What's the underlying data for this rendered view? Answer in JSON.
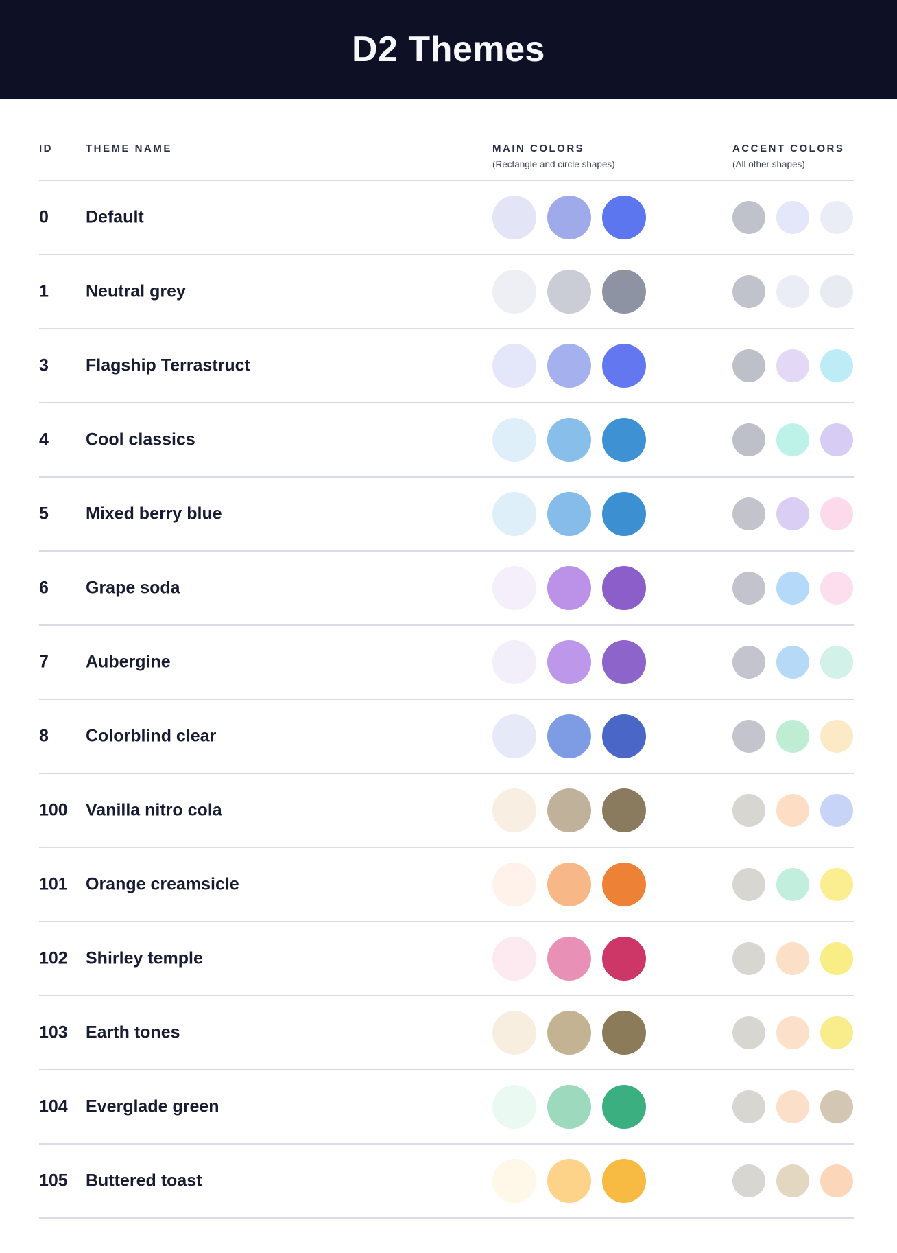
{
  "header": {
    "title": "D2 Themes",
    "bg_color": "#0E1126",
    "text_color": "#F7F8FC"
  },
  "table": {
    "divider_color": "#D9DCE6",
    "columns": {
      "id": "ID",
      "theme_name": "THEME NAME",
      "main": "MAIN COLORS",
      "main_sub": "(Rectangle and circle shapes)",
      "accent": "ACCENT COLORS",
      "accent_sub": "(All other shapes)"
    },
    "rows": [
      {
        "id": "0",
        "name": "Default",
        "main": [
          "#E3E5F7",
          "#9EAAE9",
          "#5B76EE"
        ],
        "accent": [
          "#BFC1CB",
          "#E4E6FA",
          "#EAEDF5"
        ]
      },
      {
        "id": "1",
        "name": "Neutral grey",
        "main": [
          "#EDEFF4",
          "#CACDD5",
          "#8E93A4"
        ],
        "accent": [
          "#C0C2CC",
          "#EAEDF5",
          "#E9EBF3"
        ]
      },
      {
        "id": "3",
        "name": "Flagship Terrastruct",
        "main": [
          "#E4E7FA",
          "#A5B0EF",
          "#6277F0"
        ],
        "accent": [
          "#BDBFC9",
          "#E3D9F6",
          "#BDEBF6"
        ]
      },
      {
        "id": "4",
        "name": "Cool classics",
        "main": [
          "#DEEFFA",
          "#87BEEA",
          "#3E92D4"
        ],
        "accent": [
          "#BDBFC9",
          "#BDF2E9",
          "#D6CCF4"
        ]
      },
      {
        "id": "5",
        "name": "Mixed berry blue",
        "main": [
          "#DEEFFA",
          "#85BCE9",
          "#3C90D2"
        ],
        "accent": [
          "#C2C3CC",
          "#DACEF4",
          "#FCDAEC"
        ]
      },
      {
        "id": "6",
        "name": "Grape soda",
        "main": [
          "#F5EEFB",
          "#BC92E9",
          "#8B5EC9"
        ],
        "accent": [
          "#C2C3CC",
          "#B5D9F8",
          "#FCDEEF"
        ]
      },
      {
        "id": "7",
        "name": "Aubergine",
        "main": [
          "#F2EEFA",
          "#BC97EA",
          "#8D64C9"
        ],
        "accent": [
          "#C3C4CD",
          "#B6D9F7",
          "#D2F1E8"
        ]
      },
      {
        "id": "8",
        "name": "Colorblind clear",
        "main": [
          "#E6EAF8",
          "#7E9CE4",
          "#4A67C7"
        ],
        "accent": [
          "#C3C4CD",
          "#BEEDD4",
          "#FCEAC7"
        ]
      },
      {
        "id": "100",
        "name": "Vanilla nitro cola",
        "main": [
          "#F8EEE2",
          "#C0B29A",
          "#8B7B5E"
        ],
        "accent": [
          "#D8D6D0",
          "#FDDEC5",
          "#C7D4F7"
        ]
      },
      {
        "id": "101",
        "name": "Orange creamsicle",
        "main": [
          "#FEF2EB",
          "#F8B787",
          "#ED8136"
        ],
        "accent": [
          "#D8D6D0",
          "#C2EFDD",
          "#FBEE91"
        ]
      },
      {
        "id": "102",
        "name": "Shirley temple",
        "main": [
          "#FCEAF0",
          "#E990B6",
          "#CC3767"
        ],
        "accent": [
          "#D8D6D0",
          "#FCDFC7",
          "#F9ED86"
        ]
      },
      {
        "id": "103",
        "name": "Earth tones",
        "main": [
          "#F7EEE0",
          "#C3B392",
          "#8B7B59"
        ],
        "accent": [
          "#D8D6D0",
          "#FDE0C9",
          "#F9ED8B"
        ]
      },
      {
        "id": "104",
        "name": "Everglade green",
        "main": [
          "#EAFAF2",
          "#9CD9BD",
          "#3CAF80"
        ],
        "accent": [
          "#D8D6D0",
          "#FCDFC8",
          "#D3C7B3"
        ]
      },
      {
        "id": "105",
        "name": "Buttered toast",
        "main": [
          "#FFF7E7",
          "#FCD388",
          "#F7BB44"
        ],
        "accent": [
          "#D8D6D0",
          "#E3D7C2",
          "#FCD6B8"
        ]
      }
    ]
  }
}
